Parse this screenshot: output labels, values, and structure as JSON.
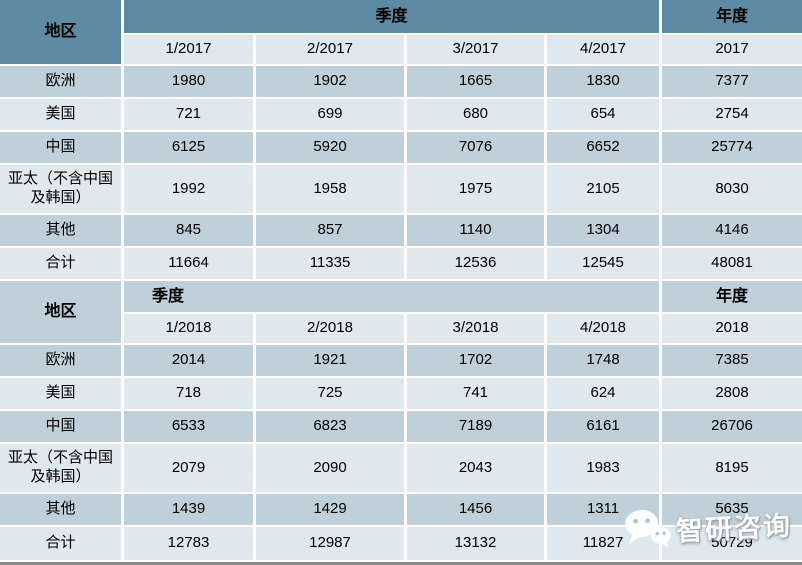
{
  "chart_data": {
    "type": "table",
    "description_visible_units": "",
    "tables": [
      {
        "region_header": "地区",
        "quarter_header": "季度",
        "year_header": "年度",
        "columns": [
          "1/2017",
          "2/2017",
          "3/2017",
          "4/2017",
          "2017"
        ],
        "rows": [
          {
            "label": "欧洲",
            "values": [
              "1980",
              "1902",
              "1665",
              "1830",
              "7377"
            ]
          },
          {
            "label": "美国",
            "values": [
              "721",
              "699",
              "680",
              "654",
              "2754"
            ]
          },
          {
            "label": "中国",
            "values": [
              "6125",
              "5920",
              "7076",
              "6652",
              "25774"
            ]
          },
          {
            "label": "亚太（不含中国及韩国）",
            "values": [
              "1992",
              "1958",
              "1975",
              "2105",
              "8030"
            ]
          },
          {
            "label": "其他",
            "values": [
              "845",
              "857",
              "1140",
              "1304",
              "4146"
            ]
          },
          {
            "label": "合计",
            "values": [
              "11664",
              "11335",
              "12536",
              "12545",
              "48081"
            ]
          }
        ]
      },
      {
        "region_header": "地区",
        "quarter_header": "季度",
        "year_header": "年度",
        "columns": [
          "1/2018",
          "2/2018",
          "3/2018",
          "4/2018",
          "2018"
        ],
        "rows": [
          {
            "label": "欧洲",
            "values": [
              "2014",
              "1921",
              "1702",
              "1748",
              "7385"
            ]
          },
          {
            "label": "美国",
            "values": [
              "718",
              "725",
              "741",
              "624",
              "2808"
            ]
          },
          {
            "label": "中国",
            "values": [
              "6533",
              "6823",
              "7189",
              "6161",
              "26706"
            ]
          },
          {
            "label": "亚太（不含中国及韩国）",
            "values": [
              "2079",
              "2090",
              "2043",
              "1983",
              "8195"
            ]
          },
          {
            "label": "其他",
            "values": [
              "1439",
              "1429",
              "1456",
              "1311",
              "5635"
            ]
          },
          {
            "label": "合计",
            "values": [
              "12783",
              "12987",
              "13132",
              "11827",
              "50729"
            ]
          }
        ]
      }
    ]
  },
  "watermark": {
    "text": "智研咨询",
    "icon": "wechat-icon"
  },
  "colors": {
    "header_teal": "#5d8ba3",
    "row_dark": "#bfd0da",
    "row_light": "#dfe8ed",
    "gap_white": "#ffffff",
    "bottom_bar_gray": "#8a8a8a",
    "text": "#000000",
    "watermark_white": "#ffffff"
  }
}
